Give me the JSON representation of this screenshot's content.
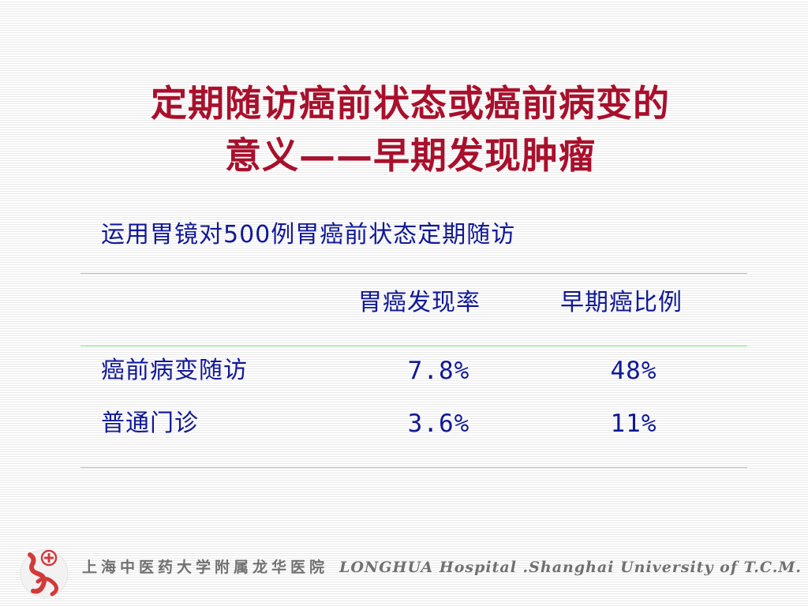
{
  "slide": {
    "title_line1": "定期随访癌前状态或癌前病变的",
    "title_line2": "意义——早期发现肿瘤",
    "subtitle": "运用胃镜对500例胃癌前状态定期随访"
  },
  "table": {
    "headers": [
      "",
      "胃癌发现率",
      "早期癌比例"
    ],
    "rows": [
      [
        "癌前病变随访",
        "7.8%",
        "48%"
      ],
      [
        "普通门诊",
        "3.6%",
        "11%"
      ]
    ]
  },
  "footer": {
    "institution_cn": "上海中医药大学附属龙华医院",
    "institution_en": "LONGHUA Hospital .Shanghai University of T.C.M."
  },
  "colors": {
    "title": "#a8102c",
    "body_text": "#101896",
    "rule": "#8fe08f",
    "footer_text": "#707070",
    "logo_accent": "#d23a3a"
  }
}
